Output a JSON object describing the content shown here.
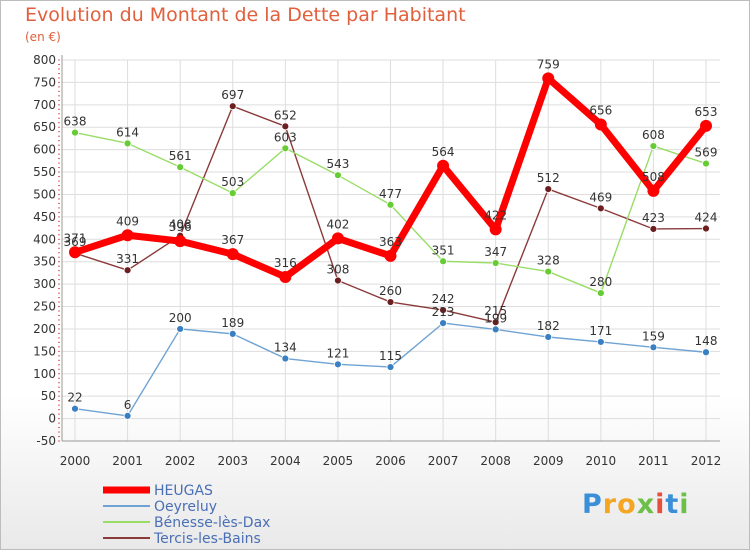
{
  "chart_data": {
    "type": "line",
    "title": "Evolution du Montant de la Dette par Habitant",
    "subtitle": "(en €)",
    "x": [
      "2000",
      "2001",
      "2002",
      "2003",
      "2004",
      "2005",
      "2006",
      "2007",
      "2008",
      "2009",
      "2010",
      "2011",
      "2012"
    ],
    "ylim": [
      -50,
      800
    ],
    "yticks": [
      -50,
      0,
      50,
      100,
      150,
      200,
      250,
      300,
      350,
      400,
      450,
      500,
      550,
      600,
      650,
      700,
      750,
      800
    ],
    "grid": true,
    "legend_position": "bottom-left",
    "series": [
      {
        "name": "HEUGAS",
        "color": "#ff0000",
        "values": [
          371,
          409,
          396,
          367,
          316,
          402,
          363,
          564,
          422,
          759,
          656,
          508,
          653
        ]
      },
      {
        "name": "Oeyreluy",
        "color": "#6fa3d3",
        "values": [
          22,
          6,
          200,
          189,
          134,
          121,
          115,
          213,
          199,
          182,
          171,
          159,
          148
        ]
      },
      {
        "name": "Bénesse-lès-Dax",
        "color": "#99dd66",
        "values": [
          638,
          614,
          561,
          503,
          603,
          543,
          477,
          351,
          347,
          328,
          280,
          608,
          569
        ]
      },
      {
        "name": "Tercis-les-Bains",
        "color": "#8b3a3a",
        "values": [
          369,
          331,
          408,
          697,
          652,
          308,
          260,
          242,
          215,
          512,
          469,
          423,
          424
        ]
      }
    ]
  },
  "logo": {
    "letters": [
      "P",
      "r",
      "o",
      "x",
      "i",
      "t",
      "i"
    ],
    "colors": [
      "#3a8fd8",
      "#f4a623",
      "#f4a623",
      "#6cc04a",
      "#e84e3c",
      "#3a8fd8",
      "#6cc04a"
    ]
  }
}
